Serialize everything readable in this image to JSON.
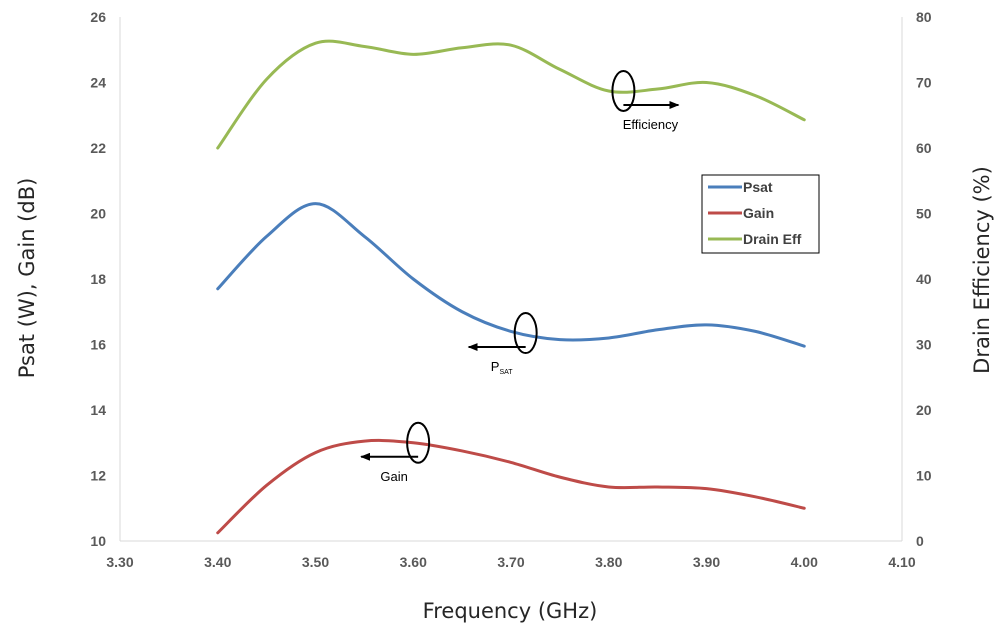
{
  "chart_data": {
    "type": "line",
    "title": "",
    "xlabel": "Frequency (GHz)",
    "ylabel": "Psat (W), Gain (dB)",
    "y2label": "Drain Efficiency (%)",
    "xlim": [
      3.3,
      4.1
    ],
    "ylim": [
      10,
      26
    ],
    "y2lim": [
      0,
      80
    ],
    "x_ticks": [
      "3.30",
      "3.40",
      "3.50",
      "3.60",
      "3.70",
      "3.80",
      "3.90",
      "4.00",
      "4.10"
    ],
    "y_ticks": [
      "10",
      "12",
      "14",
      "16",
      "18",
      "20",
      "22",
      "24",
      "26"
    ],
    "y2_ticks": [
      "0",
      "10",
      "20",
      "30",
      "40",
      "50",
      "60",
      "70",
      "80"
    ],
    "grid": false,
    "legend_position": "right",
    "x": [
      3.4,
      3.45,
      3.5,
      3.55,
      3.6,
      3.65,
      3.7,
      3.75,
      3.8,
      3.85,
      3.9,
      3.95,
      4.0
    ],
    "series": [
      {
        "name": "Psat",
        "axis": "left",
        "color": "#4a7ebb",
        "values": [
          17.7,
          19.3,
          20.3,
          19.3,
          18.0,
          17.0,
          16.4,
          16.15,
          16.2,
          16.45,
          16.6,
          16.4,
          15.95
        ]
      },
      {
        "name": "Gain",
        "axis": "left",
        "color": "#be4b48",
        "values": [
          10.25,
          11.7,
          12.7,
          13.05,
          13.0,
          12.75,
          12.4,
          11.95,
          11.65,
          11.65,
          11.6,
          11.35,
          11.0
        ]
      },
      {
        "name": "Drain Eff",
        "axis": "right",
        "color": "#98b954",
        "values": [
          60.0,
          70.5,
          76.0,
          75.5,
          74.3,
          75.3,
          75.7,
          72.0,
          68.7,
          69.0,
          70.0,
          68.0,
          64.3
        ]
      }
    ],
    "annotations": [
      {
        "label": "Efficiency",
        "series": "Drain Eff",
        "direction": "right"
      },
      {
        "label": "P",
        "subscript": "SAT",
        "series": "Psat",
        "direction": "left"
      },
      {
        "label": "Gain",
        "series": "Gain",
        "direction": "left"
      }
    ]
  }
}
